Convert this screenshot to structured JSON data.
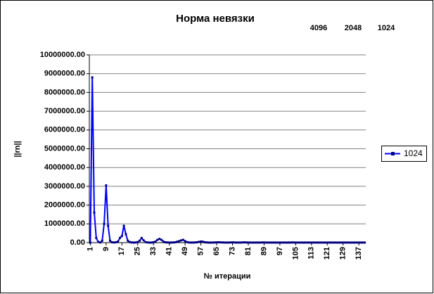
{
  "chart_data": {
    "type": "line",
    "title": "Норма невязки",
    "annotations": [
      "4096",
      "2048",
      "1024"
    ],
    "x_label": "№ итерации",
    "y_label": "||rn||",
    "categories": [
      1,
      null,
      null,
      null,
      null,
      null,
      null,
      null,
      9,
      null,
      null,
      null,
      null,
      null,
      null,
      null,
      17,
      null,
      null,
      null,
      null,
      null,
      null,
      null,
      25,
      null,
      null,
      null,
      null,
      null,
      null,
      null,
      33,
      null,
      null,
      null,
      null,
      null,
      null,
      null,
      41,
      null,
      null,
      null,
      null,
      null,
      null,
      null,
      49,
      null,
      null,
      null,
      null,
      null,
      null,
      null,
      57,
      null,
      null,
      null,
      null,
      null,
      null,
      null,
      65,
      null,
      null,
      null,
      null,
      null,
      null,
      null,
      73,
      null,
      null,
      null,
      null,
      null,
      null,
      null,
      81,
      null,
      null,
      null,
      null,
      null,
      null,
      null,
      89,
      null,
      null,
      null,
      null,
      null,
      null,
      null,
      97,
      null,
      null,
      null,
      null,
      null,
      null,
      null,
      105,
      null,
      null,
      null,
      null,
      null,
      null,
      null,
      113,
      null,
      null,
      null,
      null,
      null,
      null,
      null,
      121,
      null,
      null,
      null,
      null,
      null,
      null,
      null,
      129,
      null,
      null,
      null,
      null,
      null,
      null,
      null,
      137,
      null,
      null,
      null
    ],
    "series": [
      {
        "name": "1024",
        "color": "#0000ff",
        "values": [
          0,
          8800000,
          1600000,
          250000,
          40000,
          10000,
          100000,
          1000000,
          3050000,
          900000,
          100000,
          20000,
          10000,
          20000,
          60000,
          250000,
          350000,
          900000,
          450000,
          100000,
          30000,
          10000,
          5000,
          10000,
          30000,
          100000,
          250000,
          120000,
          30000,
          10000,
          5000,
          5000,
          20000,
          60000,
          150000,
          200000,
          150000,
          60000,
          20000,
          10000,
          5000,
          5000,
          10000,
          20000,
          50000,
          80000,
          120000,
          150000,
          80000,
          30000,
          10000,
          5000,
          5000,
          10000,
          20000,
          40000,
          60000,
          50000,
          20000,
          10000,
          5000,
          5000,
          5000,
          10000,
          15000,
          20000,
          15000,
          10000,
          5000,
          5000,
          5000,
          10000,
          15000,
          10000,
          5000,
          5000,
          5000,
          10000,
          15000,
          10000,
          5000,
          5000,
          5000,
          5000,
          5000,
          5000,
          5000,
          10000,
          10000,
          5000,
          5000,
          5000,
          5000,
          5000,
          5000,
          5000,
          5000,
          5000,
          5000,
          5000,
          5000,
          5000,
          10000,
          10000,
          5000,
          5000,
          5000,
          5000,
          5000,
          5000,
          5000,
          5000,
          5000,
          5000,
          5000,
          5000,
          5000,
          5000,
          5000,
          5000,
          5000,
          5000,
          5000,
          5000,
          5000,
          5000,
          5000,
          5000,
          5000,
          5000,
          5000,
          5000,
          5000,
          5000,
          5000,
          5000,
          5000,
          5000,
          5000,
          5000
        ]
      }
    ],
    "ylim": [
      0,
      10000000
    ],
    "yticks": [
      {
        "value": 0,
        "label": "0.00"
      },
      {
        "value": 1000000,
        "label": "1000000.00"
      },
      {
        "value": 2000000,
        "label": "2000000.00"
      },
      {
        "value": 3000000,
        "label": "3000000.00"
      },
      {
        "value": 4000000,
        "label": "4000000.00"
      },
      {
        "value": 5000000,
        "label": "5000000.00"
      },
      {
        "value": 6000000,
        "label": "6000000.00"
      },
      {
        "value": 7000000,
        "label": "7000000.00"
      },
      {
        "value": 8000000,
        "label": "8000000.00"
      },
      {
        "value": 9000000,
        "label": "9000000.00"
      },
      {
        "value": 10000000,
        "label": "10000000.00"
      }
    ],
    "grid": true,
    "legend": "right"
  }
}
